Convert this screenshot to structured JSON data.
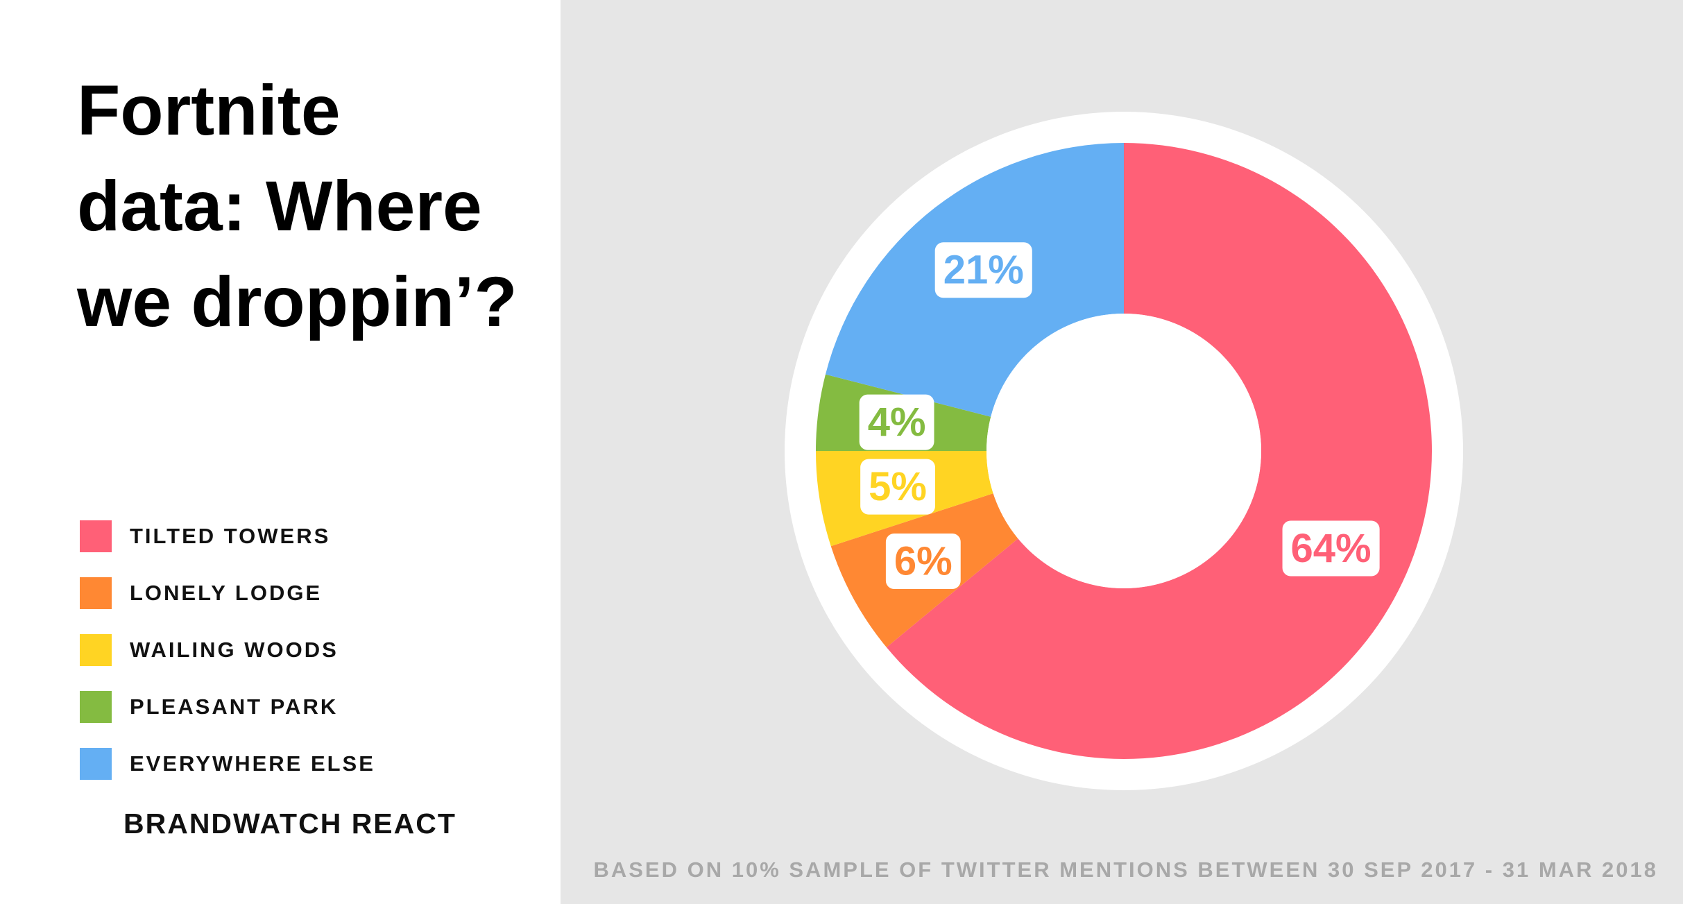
{
  "chart_data": {
    "type": "pie",
    "title": "Fortnite data: Where we droppin’?",
    "categories": [
      "TILTED TOWERS",
      "LONELY LODGE",
      "WAILING WOODS",
      "PLEASANT PARK",
      "EVERYWHERE ELSE"
    ],
    "values": [
      64,
      6,
      5,
      4,
      21
    ],
    "value_labels": [
      "64%",
      "6%",
      "5%",
      "4%",
      "21%"
    ],
    "colors": [
      "#ff6077",
      "#ff8833",
      "#ffd423",
      "#84bb41",
      "#64aff3"
    ],
    "source": "BRANDWATCH REACT",
    "note": "BASED ON 10% SAMPLE OF TWITTER MENTIONS BETWEEN 30 SEP 2017 - 31 MAR 2018"
  }
}
